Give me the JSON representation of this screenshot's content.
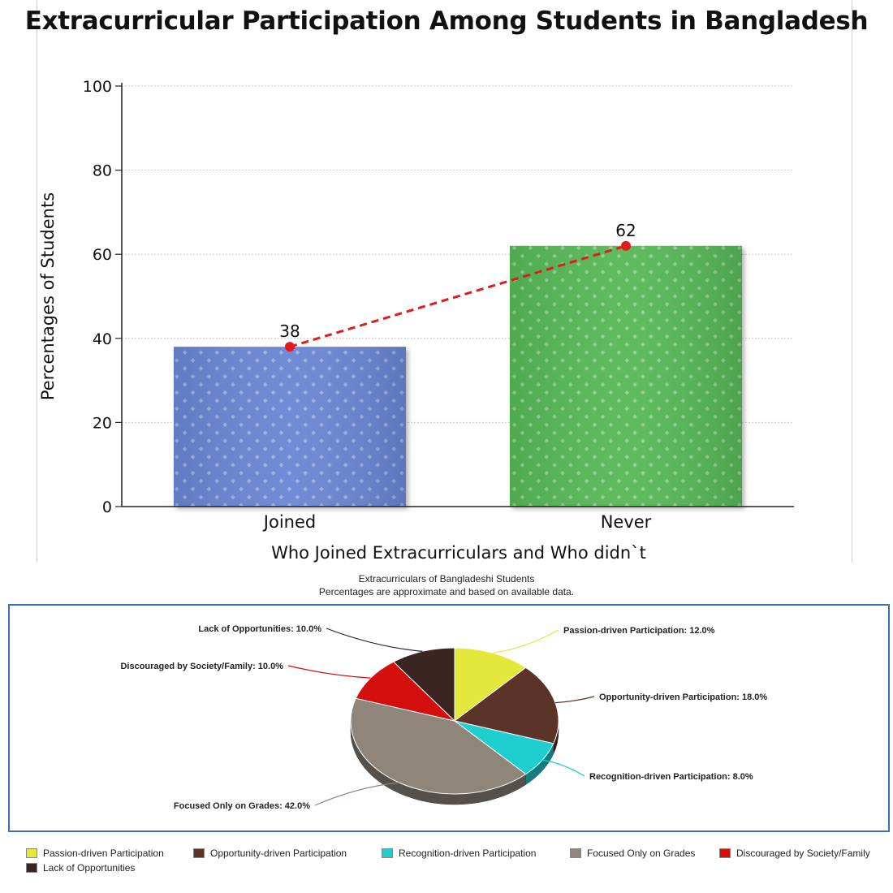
{
  "charts_title": "Extracurricular Participation Among Students in Bangladesh",
  "chart_data": [
    {
      "type": "bar",
      "title": "Extracurricular Participation Among Students in Bangladesh",
      "categories": [
        "Joined",
        "Never"
      ],
      "values": [
        38,
        62
      ],
      "value_labels": [
        "38",
        "62"
      ],
      "colors": [
        "#6a86d4",
        "#56b956"
      ],
      "trend_line": {
        "color": "#e11b1b",
        "style": "dashed",
        "values": [
          38,
          62
        ]
      },
      "xlabel": "Who Joined Extracurriculars and Who didn`t",
      "ylabel": "Percentages of Students",
      "ylim": [
        0,
        100
      ],
      "yticks": [
        "0",
        "20",
        "40",
        "60",
        "80",
        "100"
      ],
      "grid": true
    },
    {
      "type": "pie",
      "title": "Extracurriculars of Bangladeshi Students",
      "subtitle": "Percentages are approximate and based on available data.",
      "slices": [
        {
          "label": "Passion-driven Participation",
          "value": 12.0,
          "callout": "Passion-driven Participation: 12.0%",
          "color": "#e3e83a"
        },
        {
          "label": "Opportunity-driven Participation",
          "value": 18.0,
          "callout": "Opportunity-driven Participation: 18.0%",
          "color": "#5c3328"
        },
        {
          "label": "Recognition-driven Participation",
          "value": 8.0,
          "callout": "Recognition-driven Participation: 8.0%",
          "color": "#1fcfcf"
        },
        {
          "label": "Focused Only on Grades",
          "value": 42.0,
          "callout": "Focused Only on Grades: 42.0%",
          "color": "#8f857b"
        },
        {
          "label": "Discouraged by Society/Family",
          "value": 10.0,
          "callout": "Discouraged by Society/Family: 10.0%",
          "color": "#d40d0d"
        },
        {
          "label": "Lack of Opportunities",
          "value": 10.0,
          "callout": "Lack of Opportunities: 10.0%",
          "color": "#3a2520"
        }
      ],
      "legend_position": "bottom"
    }
  ]
}
